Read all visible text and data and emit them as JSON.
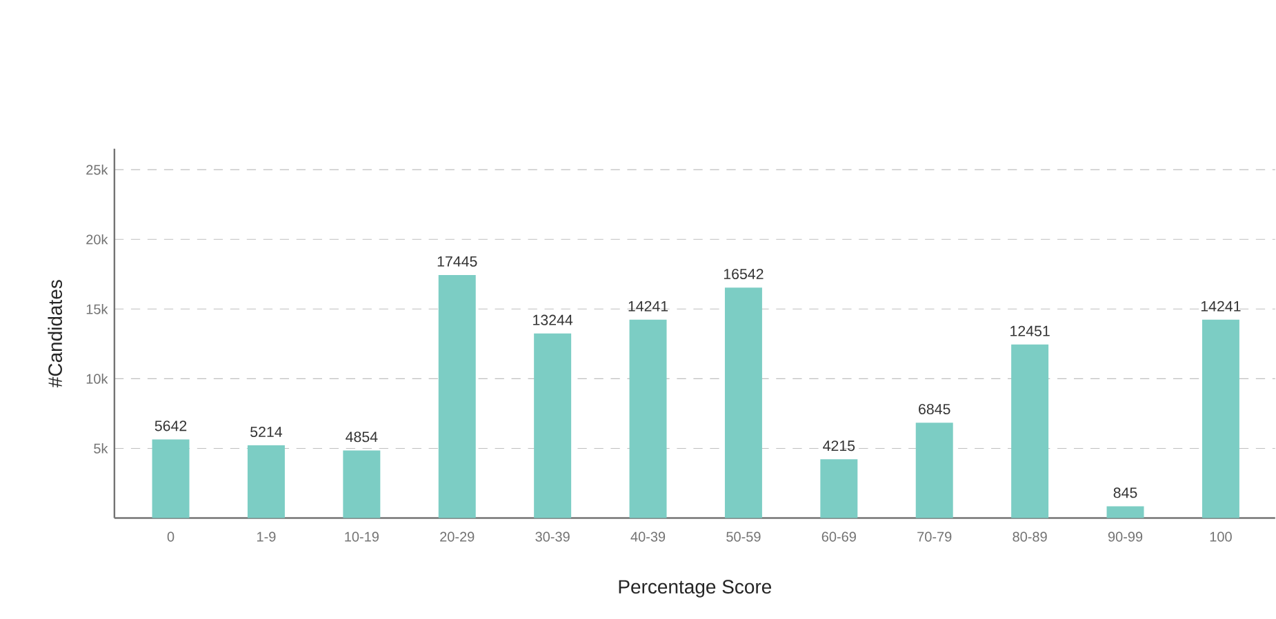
{
  "chart_data": {
    "type": "bar",
    "xlabel": "Percentage Score",
    "ylabel": "#Candidates",
    "categories": [
      "0",
      "1-9",
      "10-19",
      "20-29",
      "30-39",
      "40-39",
      "50-59",
      "60-69",
      "70-79",
      "80-89",
      "90-99",
      "100"
    ],
    "values": [
      5642,
      5214,
      4854,
      17445,
      13244,
      14241,
      16542,
      4215,
      6845,
      12451,
      845,
      14241
    ],
    "data_labels": true,
    "color": "#7ccdc4",
    "ylim": [
      0,
      26500
    ],
    "yticks": [
      {
        "value": 5000,
        "label": "5k"
      },
      {
        "value": 10000,
        "label": "10k"
      },
      {
        "value": 15000,
        "label": "15k"
      },
      {
        "value": 20000,
        "label": "20k"
      },
      {
        "value": 25000,
        "label": "25k"
      }
    ],
    "grid": "y"
  }
}
